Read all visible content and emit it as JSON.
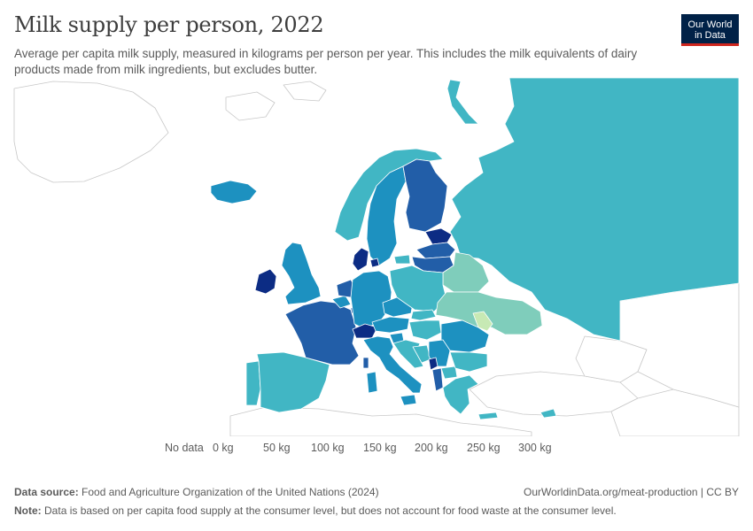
{
  "header": {
    "title": "Milk supply per person, 2022",
    "subtitle": "Average per capita milk supply, measured in kilograms per person per year. This includes the milk equivalents of dairy products made from milk ingredients, but excludes butter."
  },
  "logo": {
    "line1": "Our World",
    "line2": "in Data"
  },
  "legend": {
    "no_data_label": "No data",
    "ticks": [
      "0 kg",
      "50 kg",
      "100 kg",
      "150 kg",
      "200 kg",
      "250 kg",
      "300 kg"
    ],
    "colors": [
      "#ffffcc",
      "#c7e9b4",
      "#7fcdbb",
      "#41b6c4",
      "#1d91c0",
      "#225ea8",
      "#0c2c84"
    ]
  },
  "footer": {
    "source_label": "Data source:",
    "source_text": "Food and Agriculture Organization of the United Nations (2024)",
    "url": "OurWorldinData.org/meat-production | CC BY",
    "note_label": "Note:",
    "note_text": "Data is based on per capita food supply at the consumer level, but does not account for food waste at the consumer level."
  },
  "colors": {
    "background": "#ffffff",
    "no_data": "#ffffff",
    "border": "#ffffff",
    "outline": "#c8c8c8",
    "brand": "#002147",
    "brand_accent": "#ce261e"
  }
}
